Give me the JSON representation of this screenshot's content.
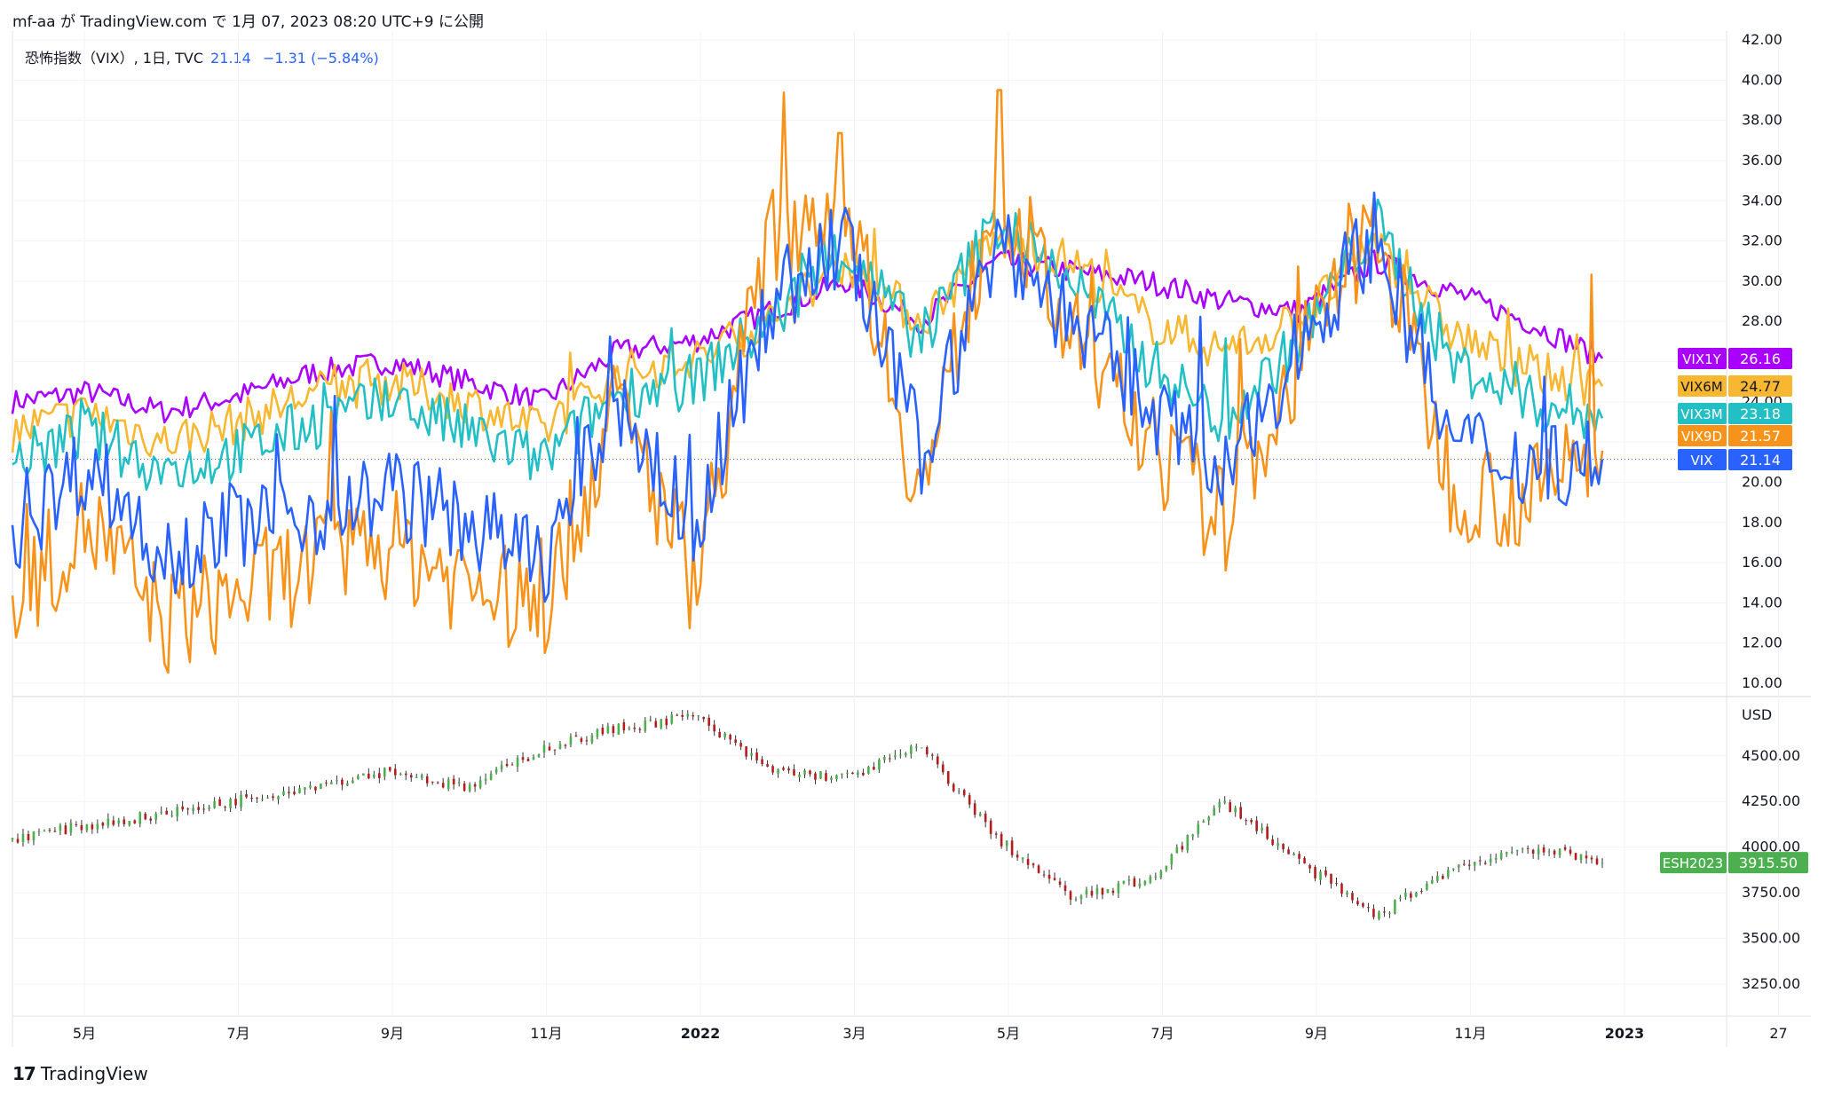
{
  "header": {
    "text": "mf-aa が TradingView.com で 1月 07, 2023 08:20 UTC+9 に公開"
  },
  "legend": {
    "title": "恐怖指数（VIX）, 1日, TVC",
    "last": "21.14",
    "change": "−1.31 (−5.84%)"
  },
  "footer": {
    "brand": "TradingView"
  },
  "colors": {
    "vix1y": "#aa00ff",
    "vix6m": "#f7b731",
    "vix3m": "#22bfc4",
    "vix9d": "#f7931a",
    "vix": "#2962ff",
    "es": "#4caf50",
    "es_down": "#b71c1c",
    "grid": "#f0f3fa"
  },
  "chart_data": [
    {
      "type": "line",
      "x_axis_labels": [
        "5月",
        "7月",
        "9月",
        "11月",
        "2022",
        "3月",
        "5月",
        "7月",
        "9月",
        "11月",
        "2023",
        "27"
      ],
      "y_ticks": [
        "42.00",
        "40.00",
        "38.00",
        "36.00",
        "34.00",
        "32.00",
        "30.00",
        "28.00",
        "26.00",
        "24.00",
        "22.00",
        "20.00",
        "18.00",
        "16.00",
        "14.00",
        "12.00",
        "10.00"
      ],
      "ylim": [
        10,
        42
      ],
      "x": [
        "2021-04",
        "2021-05",
        "2021-06",
        "2021-07",
        "2021-08",
        "2021-09",
        "2021-10",
        "2021-11",
        "2021-12",
        "2022-01",
        "2022-02",
        "2022-03",
        "2022-04",
        "2022-05",
        "2022-06",
        "2022-07",
        "2022-08",
        "2022-09",
        "2022-10",
        "2022-11",
        "2022-12",
        "2023-01"
      ],
      "series": [
        {
          "name": "VIX1Y",
          "last": "26.16",
          "color_key": "vix1y",
          "values": [
            24.0,
            24.5,
            23.5,
            24.3,
            25.5,
            26.0,
            25.0,
            24.0,
            26.5,
            27.0,
            28.5,
            30.0,
            28.0,
            31.0,
            30.5,
            30.0,
            29.0,
            28.5,
            31.0,
            29.5,
            28.0,
            26.16
          ]
        },
        {
          "name": "VIX6M",
          "last": "24.77",
          "color_key": "vix6m",
          "values": [
            22.5,
            23.5,
            22.0,
            23.0,
            24.5,
            25.0,
            24.0,
            22.5,
            25.5,
            26.0,
            28.0,
            31.0,
            28.0,
            32.0,
            31.0,
            28.0,
            26.5,
            28.0,
            32.0,
            27.5,
            25.5,
            24.77
          ]
        },
        {
          "name": "VIX3M",
          "last": "23.18",
          "color_key": "vix3m",
          "values": [
            21.0,
            22.5,
            20.5,
            21.5,
            23.0,
            24.0,
            22.5,
            21.0,
            24.5,
            25.0,
            28.0,
            31.5,
            27.0,
            33.0,
            30.0,
            26.0,
            23.0,
            27.0,
            33.0,
            26.0,
            24.0,
            23.18
          ]
        },
        {
          "name": "VIX9D",
          "last": "21.57",
          "color_key": "vix9d",
          "values": [
            14.0,
            18.0,
            13.0,
            14.5,
            16.0,
            17.0,
            15.0,
            13.5,
            24.0,
            15.0,
            32.0,
            35.0,
            19.0,
            35.0,
            27.0,
            22.0,
            18.0,
            26.0,
            33.0,
            20.0,
            19.0,
            21.57
          ]
        },
        {
          "name": "VIX",
          "last": "21.14",
          "color_key": "vix",
          "values": [
            17.5,
            21.0,
            16.5,
            18.0,
            18.5,
            19.5,
            18.0,
            16.0,
            24.0,
            17.5,
            29.0,
            32.0,
            21.5,
            32.0,
            28.0,
            24.0,
            20.0,
            27.0,
            32.5,
            22.0,
            21.0,
            21.14
          ]
        }
      ]
    },
    {
      "type": "candlestick",
      "y_ticks": [
        "4500.00",
        "4250.00",
        "4000.00",
        "3750.00",
        "3500.00",
        "3250.00"
      ],
      "y_unit": "USD",
      "ylim": [
        3100,
        4800
      ],
      "x": [
        "2021-04",
        "2021-05",
        "2021-06",
        "2021-07",
        "2021-08",
        "2021-09",
        "2021-10",
        "2021-11",
        "2021-12",
        "2022-01",
        "2022-02",
        "2022-03",
        "2022-04",
        "2022-05",
        "2022-06",
        "2022-07",
        "2022-08",
        "2022-09",
        "2022-10",
        "2022-11",
        "2022-12",
        "2023-01"
      ],
      "series": [
        {
          "name": "ESH2023",
          "last": "3915.50",
          "values": [
            4050,
            4120,
            4180,
            4260,
            4340,
            4420,
            4320,
            4540,
            4650,
            4720,
            4420,
            4380,
            4550,
            4050,
            3720,
            3820,
            4250,
            3920,
            3620,
            3880,
            4000,
            3915.5
          ]
        }
      ]
    }
  ]
}
